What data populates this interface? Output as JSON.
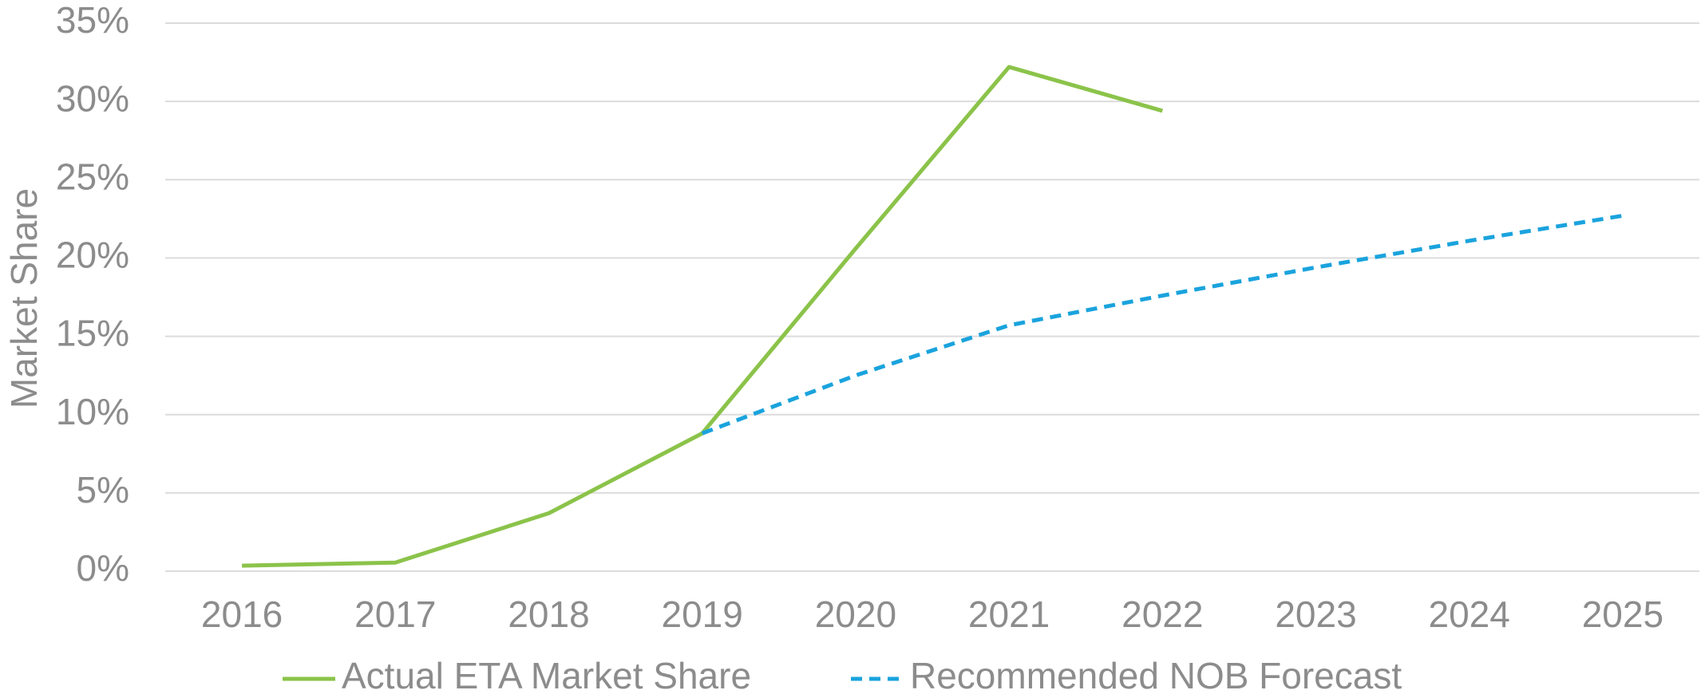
{
  "chart_data": {
    "type": "line",
    "y_label": "Market Share",
    "categories": [
      "2016",
      "2017",
      "2018",
      "2019",
      "2020",
      "2021",
      "2022",
      "2023",
      "2024",
      "2025"
    ],
    "series": [
      {
        "name": "Actual ETA Market Share",
        "color": "#8bc34a",
        "dash": false,
        "values": [
          0.35,
          0.55,
          3.7,
          8.8,
          20.6,
          32.2,
          29.4,
          null,
          null,
          null
        ]
      },
      {
        "name": "Recommended NOB Forecast",
        "color": "#1aa3dd",
        "dash": true,
        "values": [
          null,
          null,
          null,
          8.8,
          12.5,
          15.7,
          17.6,
          19.4,
          21.1,
          22.7
        ]
      }
    ],
    "ylim": [
      0,
      35
    ],
    "yticks": [
      {
        "value": 0,
        "label": "0%"
      },
      {
        "value": 5,
        "label": "5%"
      },
      {
        "value": 10,
        "label": "10%"
      },
      {
        "value": 15,
        "label": "15%"
      },
      {
        "value": 20,
        "label": "20%"
      },
      {
        "value": 25,
        "label": "25%"
      },
      {
        "value": 30,
        "label": "30%"
      },
      {
        "value": 35,
        "label": "35%"
      }
    ],
    "grid": true,
    "legend": "bottom"
  }
}
